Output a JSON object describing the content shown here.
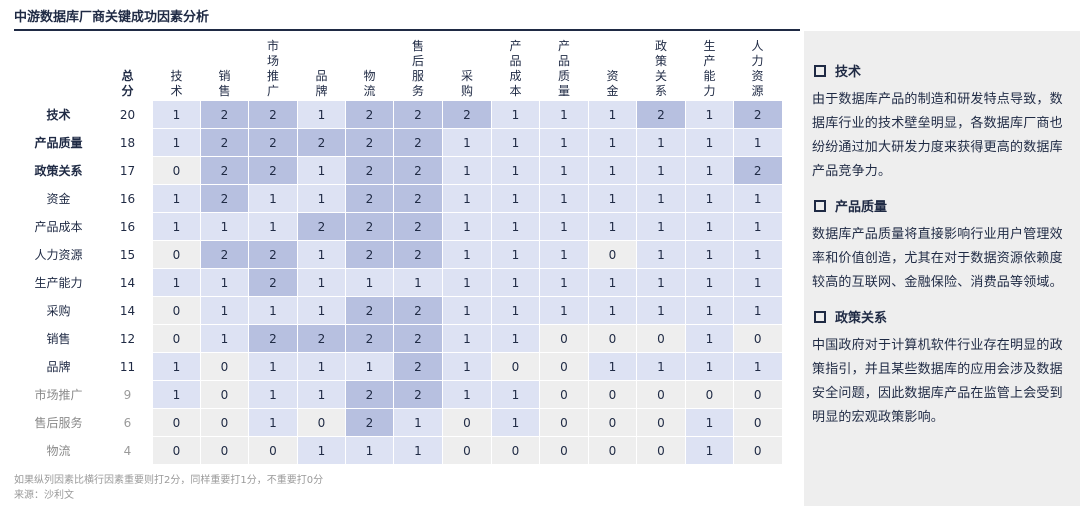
{
  "title": "中游数据库厂商关键成功因素分析",
  "columns": {
    "total": "总分",
    "factors": [
      "技术",
      "销售",
      "市场推广",
      "品牌",
      "物流",
      "售后服务",
      "采购",
      "产品成本",
      "产品质量",
      "资金",
      "政策关系",
      "生产能力",
      "人力资源"
    ]
  },
  "rows": [
    {
      "name": "技术",
      "total": "20",
      "values": [
        1,
        2,
        2,
        1,
        2,
        2,
        2,
        1,
        1,
        1,
        2,
        1,
        2
      ],
      "style": "strong"
    },
    {
      "name": "产品质量",
      "total": "18",
      "values": [
        1,
        2,
        2,
        2,
        2,
        2,
        1,
        1,
        1,
        1,
        1,
        1,
        1
      ],
      "style": "strong"
    },
    {
      "name": "政策关系",
      "total": "17",
      "values": [
        0,
        2,
        2,
        1,
        2,
        2,
        1,
        1,
        1,
        1,
        1,
        1,
        2
      ],
      "style": "strong"
    },
    {
      "name": "资金",
      "total": "16",
      "values": [
        1,
        2,
        1,
        1,
        2,
        2,
        1,
        1,
        1,
        1,
        1,
        1,
        1
      ],
      "style": "normal"
    },
    {
      "name": "产品成本",
      "total": "16",
      "values": [
        1,
        1,
        1,
        2,
        2,
        2,
        1,
        1,
        1,
        1,
        1,
        1,
        1
      ],
      "style": "normal"
    },
    {
      "name": "人力资源",
      "total": "15",
      "values": [
        0,
        2,
        2,
        1,
        2,
        2,
        1,
        1,
        1,
        0,
        1,
        1,
        1
      ],
      "style": "normal"
    },
    {
      "name": "生产能力",
      "total": "14",
      "values": [
        1,
        1,
        2,
        1,
        1,
        1,
        1,
        1,
        1,
        1,
        1,
        1,
        1
      ],
      "style": "normal"
    },
    {
      "name": "采购",
      "total": "14",
      "values": [
        0,
        1,
        1,
        1,
        2,
        2,
        1,
        1,
        1,
        1,
        1,
        1,
        1
      ],
      "style": "normal"
    },
    {
      "name": "销售",
      "total": "12",
      "values": [
        0,
        1,
        2,
        2,
        2,
        2,
        1,
        1,
        0,
        0,
        0,
        1,
        0
      ],
      "style": "normal"
    },
    {
      "name": "品牌",
      "total": "11",
      "values": [
        1,
        0,
        1,
        1,
        1,
        2,
        1,
        0,
        0,
        1,
        1,
        1,
        1
      ],
      "style": "normal"
    },
    {
      "name": "市场推广",
      "total": "9",
      "values": [
        1,
        0,
        1,
        1,
        2,
        2,
        1,
        1,
        0,
        0,
        0,
        0,
        0
      ],
      "style": "muted"
    },
    {
      "name": "售后服务",
      "total": "6",
      "values": [
        0,
        0,
        1,
        0,
        2,
        1,
        0,
        1,
        0,
        0,
        0,
        1,
        0
      ],
      "style": "muted"
    },
    {
      "name": "物流",
      "total": "4",
      "values": [
        0,
        0,
        0,
        1,
        1,
        1,
        0,
        0,
        0,
        0,
        0,
        1,
        0
      ],
      "style": "muted"
    }
  ],
  "note": "如果纵列因素比横行因素重要则打2分，同样重要打1分，不重要打0分",
  "source": "来源：沙利文",
  "sidebar": [
    {
      "heading": "技术",
      "body": "由于数据库产品的制造和研发特点导致，数据库行业的技术壁垒明显，各数据库厂商也纷纷通过加大研发力度来获得更高的数据库产品竞争力。"
    },
    {
      "heading": "产品质量",
      "body": "数据库产品质量将直接影响行业用户管理效率和价值创造，尤其在对于数据资源依赖度较高的互联网、金融保险、消费品等领域。"
    },
    {
      "heading": "政策关系",
      "body": "中国政府对于计算机软件行业存在明显的政策指引，并且某些数据库的应用会涉及数据安全问题，因此数据库产品在监管上会受到明显的宏观政策影响。"
    }
  ],
  "colors": {
    "high": "#b7c0e0",
    "mid": "#dde2f3",
    "low": "#eeeeee",
    "text": "#1f2a44"
  }
}
